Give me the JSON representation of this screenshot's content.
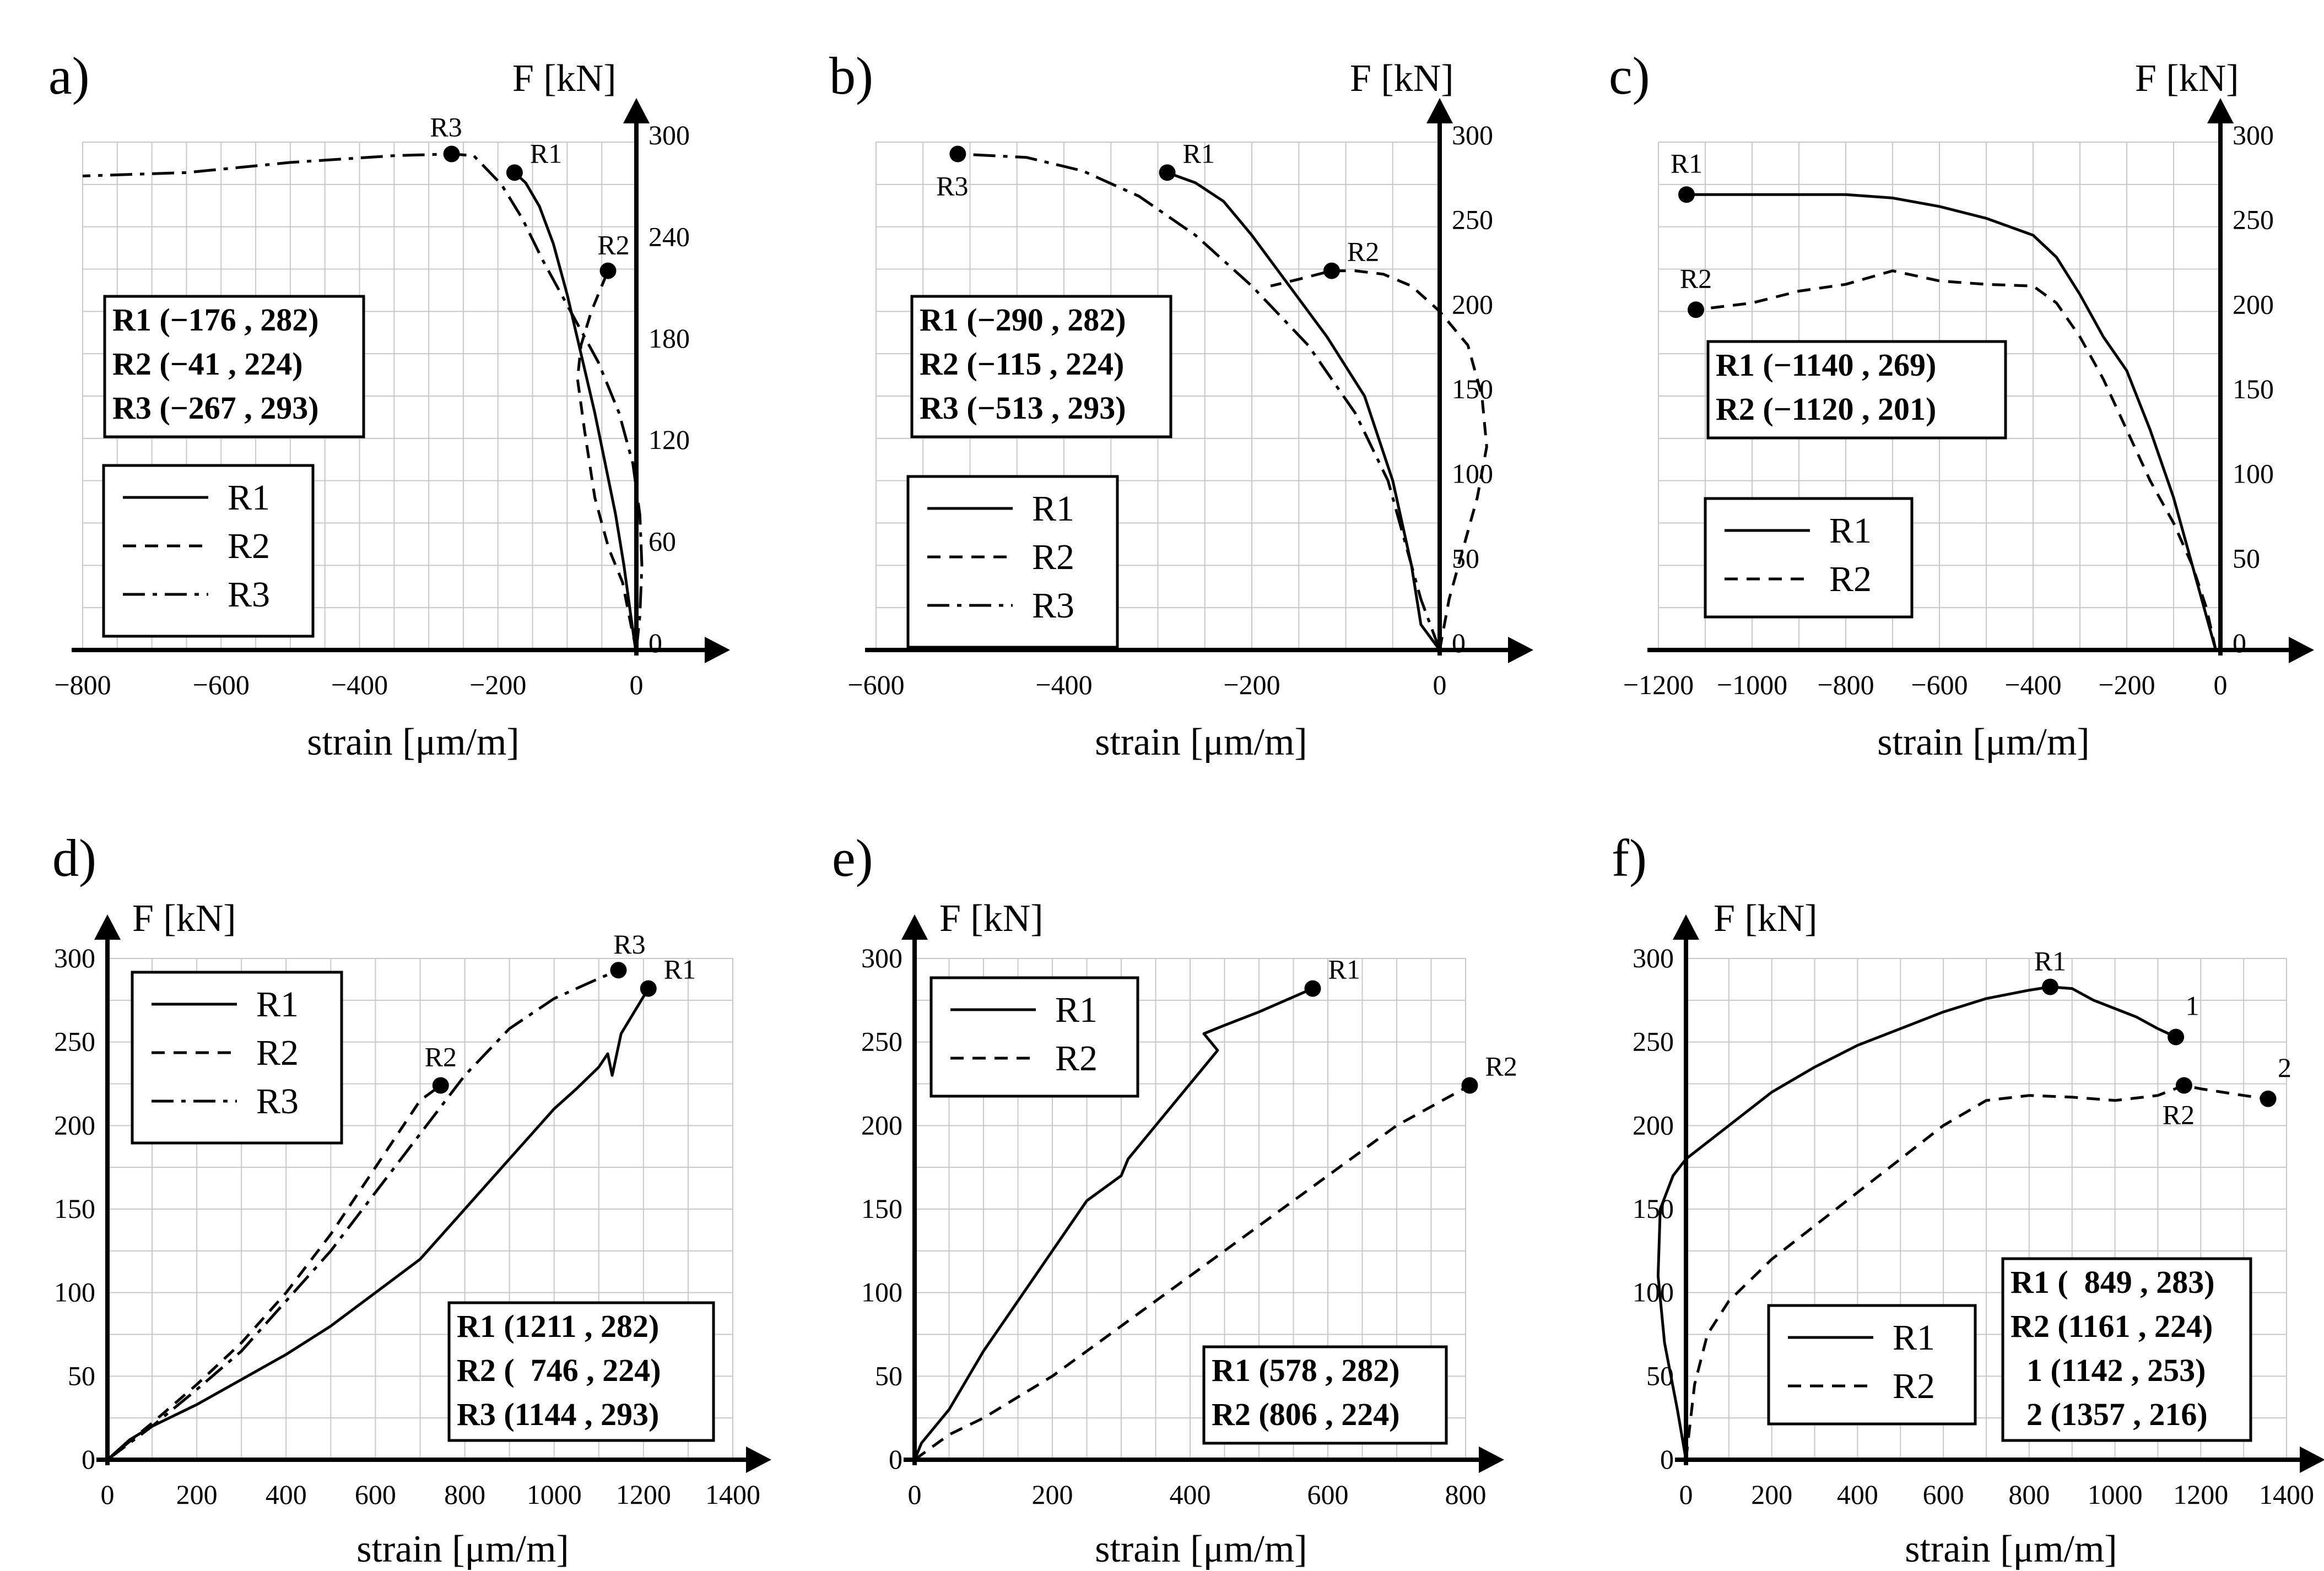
{
  "figure": {
    "charts": [
      "a",
      "b",
      "c",
      "d",
      "e",
      "f"
    ]
  },
  "chart_data": [
    {
      "id": "a",
      "type": "line",
      "panel_label": "a)",
      "ylabel": "F [kN]",
      "xlabel": "strain [μm/m]",
      "xlim": [
        -800,
        0
      ],
      "ylim": [
        0,
        300
      ],
      "x_ticks": [
        -800,
        -600,
        -400,
        -200,
        0
      ],
      "x_tick_labels": [
        "−800",
        "−600",
        "−400",
        "−200",
        "0"
      ],
      "y_ticks": [
        0,
        60,
        120,
        180,
        240,
        300
      ],
      "y_tick_labels": [
        "0",
        "60",
        "120",
        "180",
        "240",
        "300"
      ],
      "legend": [
        {
          "name": "R1",
          "style": "solid"
        },
        {
          "name": "R2",
          "style": "dashed"
        },
        {
          "name": "R3",
          "style": "dashdot"
        }
      ],
      "info": [
        "R1 (−176 , 282)",
        "R2 (−41 , 224)",
        "R3 (−267 , 293)"
      ],
      "series": [
        {
          "name": "R1",
          "style": "solid",
          "x": [
            -1,
            -8,
            -18,
            -30,
            -45,
            -60,
            -80,
            -100,
            -120,
            -140,
            -160,
            -176
          ],
          "y": [
            0,
            20,
            50,
            80,
            110,
            140,
            175,
            210,
            240,
            262,
            276,
            282
          ]
        },
        {
          "name": "R2",
          "style": "dashed",
          "x": [
            0,
            -8,
            -20,
            -40,
            -60,
            -75,
            -85,
            -80,
            -65,
            -50,
            -41
          ],
          "y": [
            0,
            15,
            40,
            60,
            90,
            130,
            160,
            180,
            200,
            215,
            224
          ]
        },
        {
          "name": "R3",
          "style": "dashdot",
          "x": [
            0,
            5,
            8,
            5,
            -5,
            -25,
            -55,
            -95,
            -135,
            -165,
            -195,
            -235,
            -267,
            -350,
            -500,
            -650,
            -800
          ],
          "y": [
            0,
            20,
            50,
            80,
            110,
            140,
            170,
            200,
            230,
            255,
            275,
            292,
            293,
            292,
            288,
            282,
            280
          ]
        }
      ],
      "markers": [
        {
          "label": "R1",
          "x": -176,
          "y": 282
        },
        {
          "label": "R2",
          "x": -41,
          "y": 224
        },
        {
          "label": "R3",
          "x": -267,
          "y": 293
        }
      ]
    },
    {
      "id": "b",
      "type": "line",
      "panel_label": "b)",
      "ylabel": "F [kN]",
      "xlabel": "strain [μm/m]",
      "xlim": [
        -600,
        0
      ],
      "ylim": [
        0,
        300
      ],
      "x_ticks": [
        -600,
        -400,
        -200,
        0
      ],
      "x_tick_labels": [
        "−600",
        "−400",
        "−200",
        "0"
      ],
      "y_ticks": [
        0,
        50,
        100,
        150,
        200,
        250,
        300
      ],
      "y_tick_labels": [
        "0",
        "50",
        "100",
        "150",
        "200",
        "250",
        "300"
      ],
      "legend": [
        {
          "name": "R1",
          "style": "solid"
        },
        {
          "name": "R2",
          "style": "dashed"
        },
        {
          "name": "R3",
          "style": "dashdot"
        }
      ],
      "info": [
        "R1 (−290 , 282)",
        "R2 (−115 , 224)",
        "R3 (−513 , 293)"
      ],
      "series": [
        {
          "name": "R1",
          "style": "solid",
          "x": [
            0,
            -20,
            -30,
            -50,
            -80,
            -120,
            -160,
            -200,
            -230,
            -260,
            -290
          ],
          "y": [
            0,
            15,
            50,
            100,
            150,
            185,
            215,
            245,
            265,
            276,
            282
          ]
        },
        {
          "name": "R2",
          "style": "dashed",
          "x": [
            0,
            10,
            25,
            40,
            50,
            45,
            30,
            0,
            -30,
            -60,
            -90,
            -115,
            -150,
            -180
          ],
          "y": [
            0,
            30,
            60,
            90,
            120,
            150,
            180,
            200,
            215,
            222,
            224,
            224,
            219,
            215
          ]
        },
        {
          "name": "R3",
          "style": "dashdot",
          "x": [
            0,
            -20,
            -35,
            -55,
            -90,
            -140,
            -200,
            -260,
            -320,
            -380,
            -440,
            -513
          ],
          "y": [
            0,
            30,
            60,
            100,
            140,
            180,
            215,
            245,
            268,
            283,
            291,
            293
          ]
        }
      ],
      "markers": [
        {
          "label": "R1",
          "x": -290,
          "y": 282
        },
        {
          "label": "R2",
          "x": -115,
          "y": 224
        },
        {
          "label": "R3",
          "x": -513,
          "y": 293
        }
      ]
    },
    {
      "id": "c",
      "type": "line",
      "panel_label": "c)",
      "ylabel": "F [kN]",
      "xlabel": "strain [μm/m]",
      "xlim": [
        -1200,
        0
      ],
      "ylim": [
        0,
        300
      ],
      "x_ticks": [
        -1200,
        -1000,
        -800,
        -600,
        -400,
        -200,
        0
      ],
      "x_tick_labels": [
        "−1200",
        "−1000",
        "−800",
        "−600",
        "−400",
        "−200",
        "0"
      ],
      "y_ticks": [
        0,
        50,
        100,
        150,
        200,
        250,
        300
      ],
      "y_tick_labels": [
        "0",
        "50",
        "100",
        "150",
        "200",
        "250",
        "300"
      ],
      "legend": [
        {
          "name": "R1",
          "style": "solid"
        },
        {
          "name": "R2",
          "style": "dashed"
        }
      ],
      "info": [
        "R1 (−1140 , 269)",
        "R2 (−1120 , 201)"
      ],
      "series": [
        {
          "name": "R1",
          "style": "solid",
          "x": [
            -10,
            -30,
            -60,
            -100,
            -150,
            -200,
            -250,
            -300,
            -350,
            -400,
            -500,
            -600,
            -700,
            -800,
            -1000,
            -1140
          ],
          "y": [
            0,
            20,
            50,
            90,
            130,
            165,
            185,
            210,
            232,
            245,
            255,
            262,
            267,
            269,
            269,
            269
          ]
        },
        {
          "name": "R2",
          "style": "dashed",
          "x": [
            -10,
            -30,
            -60,
            -100,
            -150,
            -200,
            -250,
            -300,
            -350,
            -400,
            -500,
            -600,
            -700,
            -800,
            -900,
            -1000,
            -1120
          ],
          "y": [
            0,
            25,
            50,
            75,
            100,
            130,
            160,
            185,
            205,
            215,
            216,
            218,
            224,
            216,
            212,
            205,
            201
          ]
        }
      ],
      "markers": [
        {
          "label": "R1",
          "x": -1140,
          "y": 269
        },
        {
          "label": "R2",
          "x": -1120,
          "y": 201
        }
      ]
    },
    {
      "id": "d",
      "type": "line",
      "panel_label": "d)",
      "ylabel": "F [kN]",
      "xlabel": "strain [μm/m]",
      "xlim": [
        0,
        1400
      ],
      "ylim": [
        0,
        300
      ],
      "x_ticks": [
        0,
        200,
        400,
        600,
        800,
        1000,
        1200,
        1400
      ],
      "x_tick_labels": [
        "0",
        "200",
        "400",
        "600",
        "800",
        "1000",
        "1200",
        "1400"
      ],
      "y_ticks": [
        0,
        50,
        100,
        150,
        200,
        250,
        300
      ],
      "y_tick_labels": [
        "0",
        "50",
        "100",
        "150",
        "200",
        "250",
        "300"
      ],
      "legend": [
        {
          "name": "R1",
          "style": "solid"
        },
        {
          "name": "R2",
          "style": "dashed"
        },
        {
          "name": "R3",
          "style": "dashdot"
        }
      ],
      "info": [
        "R1 (1211 , 282)",
        "R2 (  746 , 224)",
        "R3 (1144 , 293)"
      ],
      "series": [
        {
          "name": "R1",
          "style": "solid",
          "x": [
            0,
            50,
            100,
            200,
            300,
            400,
            500,
            600,
            700,
            800,
            900,
            950,
            1000,
            1050,
            1100,
            1120,
            1130,
            1150,
            1211
          ],
          "y": [
            0,
            12,
            20,
            33,
            48,
            63,
            80,
            100,
            120,
            150,
            180,
            195,
            210,
            222,
            235,
            243,
            230,
            255,
            282
          ]
        },
        {
          "name": "R2",
          "style": "dashed",
          "x": [
            0,
            100,
            200,
            300,
            400,
            500,
            600,
            700,
            746
          ],
          "y": [
            0,
            22,
            45,
            70,
            100,
            135,
            175,
            215,
            224
          ]
        },
        {
          "name": "R3",
          "style": "dashdot",
          "x": [
            0,
            100,
            200,
            300,
            400,
            500,
            600,
            700,
            800,
            900,
            1000,
            1100,
            1144
          ],
          "y": [
            0,
            20,
            42,
            65,
            95,
            125,
            160,
            195,
            230,
            258,
            276,
            288,
            293
          ]
        }
      ],
      "markers": [
        {
          "label": "R1",
          "x": 1211,
          "y": 282
        },
        {
          "label": "R2",
          "x": 746,
          "y": 224
        },
        {
          "label": "R3",
          "x": 1144,
          "y": 293
        }
      ]
    },
    {
      "id": "e",
      "type": "line",
      "panel_label": "e)",
      "ylabel": "F [kN]",
      "xlabel": "strain [μm/m]",
      "xlim": [
        0,
        800
      ],
      "ylim": [
        0,
        300
      ],
      "x_ticks": [
        0,
        200,
        400,
        600,
        800
      ],
      "x_tick_labels": [
        "0",
        "200",
        "400",
        "600",
        "800"
      ],
      "y_ticks": [
        0,
        50,
        100,
        150,
        200,
        250,
        300
      ],
      "y_tick_labels": [
        "0",
        "50",
        "100",
        "150",
        "200",
        "250",
        "300"
      ],
      "legend": [
        {
          "name": "R1",
          "style": "solid"
        },
        {
          "name": "R2",
          "style": "dashed"
        }
      ],
      "info": [
        "R1 (578 , 282)",
        "R2 (806 , 224)"
      ],
      "series": [
        {
          "name": "R1",
          "style": "solid",
          "x": [
            0,
            10,
            50,
            100,
            150,
            200,
            250,
            300,
            310,
            320,
            350,
            400,
            430,
            440,
            420,
            450,
            500,
            578
          ],
          "y": [
            0,
            10,
            30,
            65,
            95,
            125,
            155,
            170,
            180,
            185,
            200,
            225,
            240,
            245,
            255,
            260,
            268,
            282
          ]
        },
        {
          "name": "R2",
          "style": "dashed",
          "x": [
            0,
            50,
            100,
            200,
            300,
            400,
            500,
            600,
            700,
            806
          ],
          "y": [
            0,
            15,
            25,
            50,
            80,
            110,
            140,
            170,
            200,
            224
          ]
        }
      ],
      "markers": [
        {
          "label": "R1",
          "x": 578,
          "y": 282
        },
        {
          "label": "R2",
          "x": 806,
          "y": 224
        }
      ]
    },
    {
      "id": "f",
      "type": "line",
      "panel_label": "f)",
      "ylabel": "F [kN]",
      "xlabel": "strain [μm/m]",
      "xlim": [
        0,
        1400
      ],
      "ylim": [
        0,
        300
      ],
      "x_ticks": [
        0,
        200,
        400,
        600,
        800,
        1000,
        1200,
        1400
      ],
      "x_tick_labels": [
        "0",
        "200",
        "400",
        "600",
        "800",
        "1000",
        "1200",
        "1400"
      ],
      "y_ticks": [
        0,
        50,
        100,
        150,
        200,
        250,
        300
      ],
      "y_tick_labels": [
        "0",
        "50",
        "100",
        "150",
        "200",
        "250",
        "300"
      ],
      "legend": [
        {
          "name": "R1",
          "style": "solid"
        },
        {
          "name": "R2",
          "style": "dashed"
        }
      ],
      "info": [
        "R1 (  849 , 283)",
        "R2 (1161 , 224)",
        "  1 (1142 , 253)",
        "  2 (1357 , 216)"
      ],
      "series": [
        {
          "name": "R1",
          "style": "solid",
          "x": [
            0,
            -20,
            -50,
            -65,
            -60,
            -30,
            0,
            100,
            200,
            300,
            400,
            500,
            600,
            700,
            800,
            849,
            900,
            950,
            1000,
            1050,
            1100,
            1142
          ],
          "y": [
            0,
            30,
            70,
            110,
            150,
            170,
            180,
            200,
            220,
            235,
            248,
            258,
            268,
            276,
            281,
            283,
            282,
            275,
            270,
            265,
            258,
            253
          ]
        },
        {
          "name": "R2",
          "style": "dashed",
          "x": [
            0,
            20,
            50,
            100,
            200,
            300,
            400,
            500,
            600,
            700,
            800,
            900,
            1000,
            1100,
            1161,
            1200,
            1300,
            1357
          ],
          "y": [
            0,
            45,
            75,
            95,
            120,
            140,
            160,
            180,
            200,
            215,
            218,
            217,
            215,
            218,
            224,
            222,
            218,
            216
          ]
        }
      ],
      "markers": [
        {
          "label": "R1",
          "x": 849,
          "y": 283
        },
        {
          "label": "R2",
          "x": 1161,
          "y": 224
        },
        {
          "label": "1",
          "x": 1142,
          "y": 253
        },
        {
          "label": "2",
          "x": 1357,
          "y": 216
        }
      ]
    }
  ]
}
